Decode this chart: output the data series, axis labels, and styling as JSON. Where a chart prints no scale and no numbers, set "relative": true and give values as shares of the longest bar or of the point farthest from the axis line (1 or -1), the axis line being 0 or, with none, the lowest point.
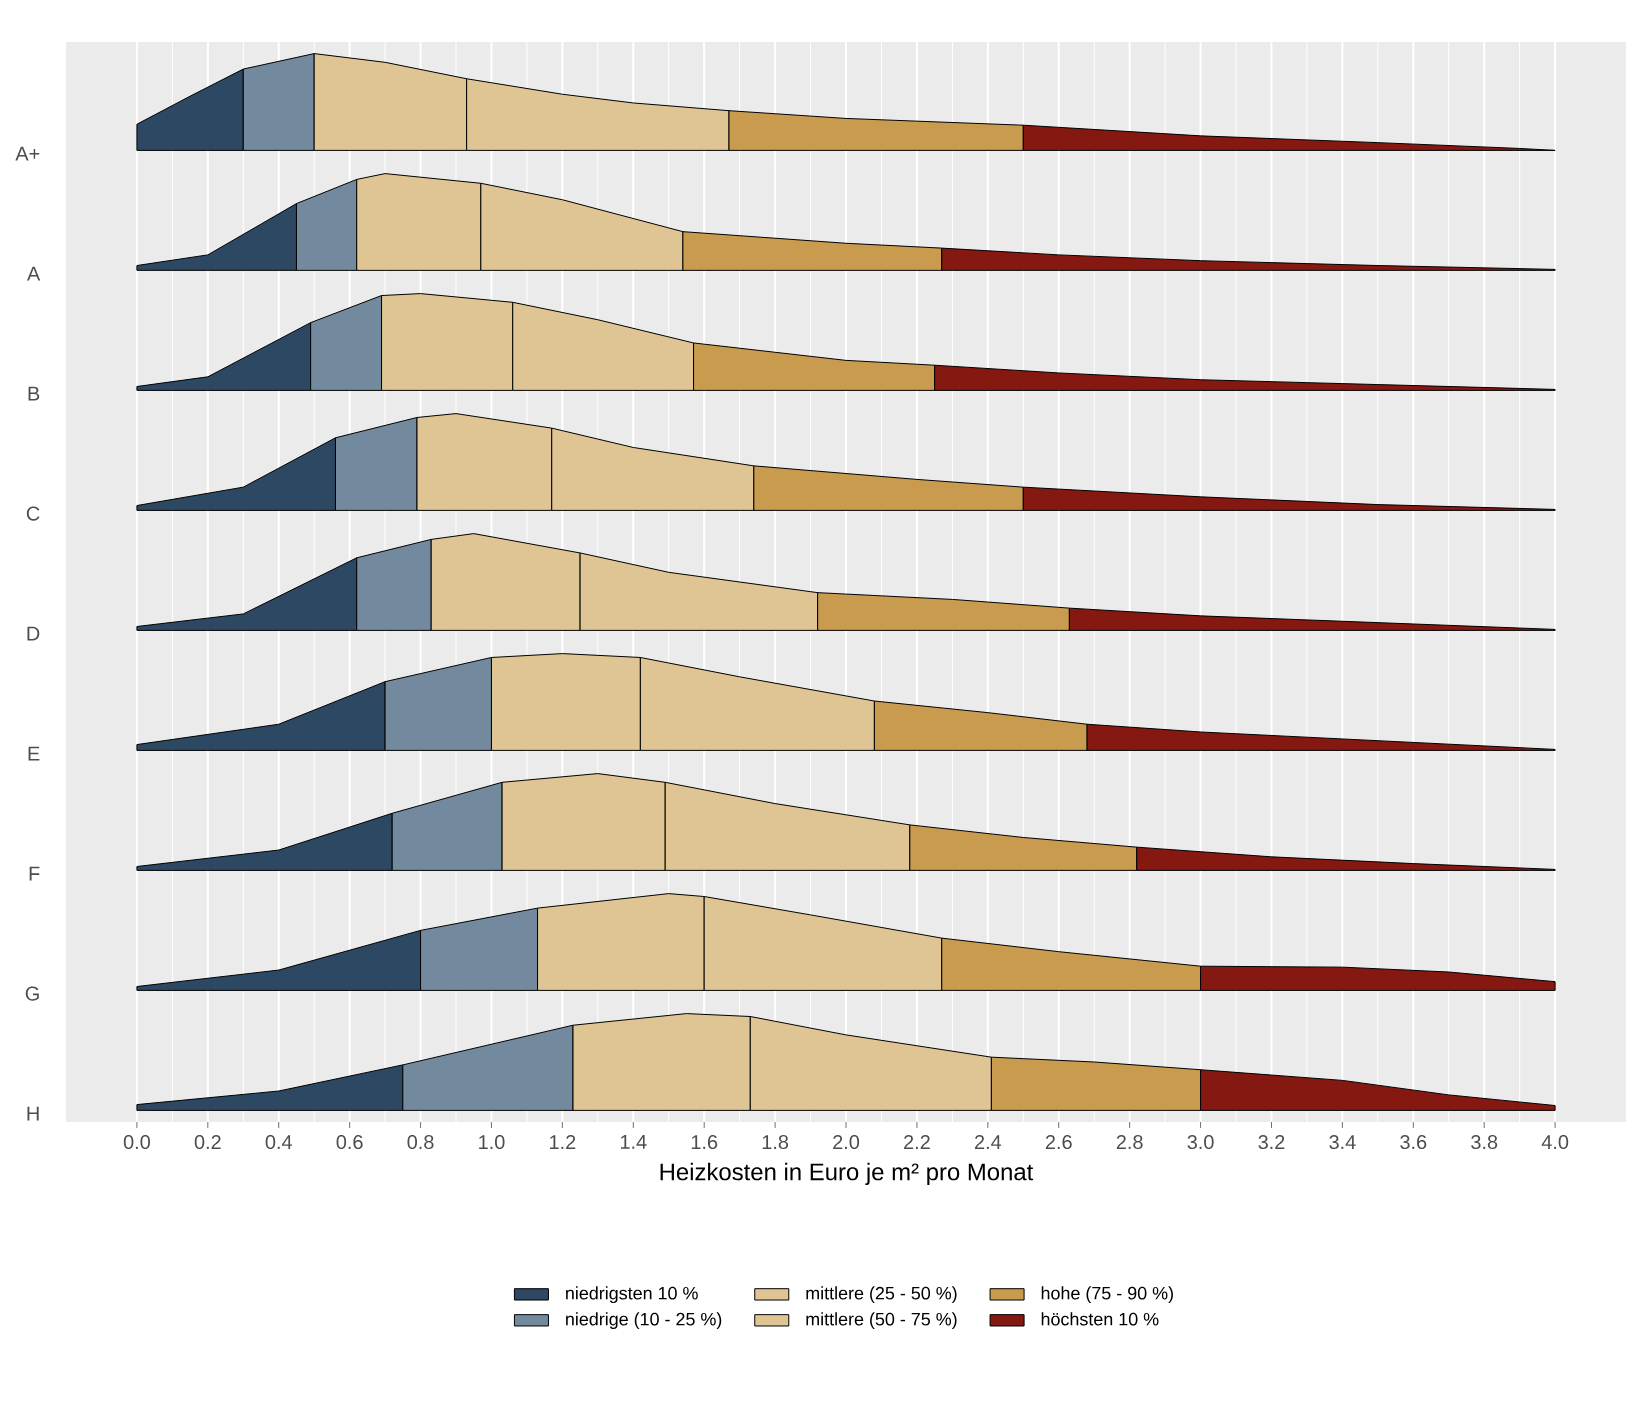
{
  "chart_data": [
    {
      "type": "area",
      "relative": true,
      "ylabel": "A+",
      "xlim": [
        -0.2,
        4.2
      ],
      "xticks": [
        0,
        0.2,
        0.4,
        0.6,
        0.8,
        1,
        1.2,
        1.4,
        1.6,
        1.8,
        2,
        2.2,
        2.4,
        2.6,
        2.8,
        3,
        3.2,
        3.4,
        3.6,
        3.8,
        4
      ],
      "tick_labels": false,
      "grid": "x",
      "series": [
        {
          "color": "#2d4862",
          "x": [
            0,
            0.15,
            0.3
          ],
          "values": [
            0.27,
            0.56,
            0.84
          ]
        },
        {
          "color": "#738a9e",
          "x": [
            0.3,
            0.5
          ],
          "values": [
            0.84,
            1
          ]
        },
        {
          "color": "#e0c594",
          "x": [
            0.5,
            0.7,
            0.93
          ],
          "values": [
            1,
            0.91,
            0.74
          ]
        },
        {
          "color": "#e0c594",
          "x": [
            0.93,
            1.2,
            1.4,
            1.67
          ],
          "values": [
            0.74,
            0.58,
            0.49,
            0.41
          ]
        },
        {
          "color": "#c99b4e",
          "x": [
            1.67,
            2.0,
            2.5
          ],
          "values": [
            0.41,
            0.33,
            0.26
          ]
        },
        {
          "color": "#861812",
          "x": [
            2.5,
            3.0,
            3.5,
            3.9,
            4.0
          ],
          "values": [
            0.26,
            0.15,
            0.08,
            0.02,
            0
          ]
        }
      ]
    },
    {
      "type": "area",
      "relative": true,
      "ylabel": "A",
      "xlim": [
        -0.2,
        4.2
      ],
      "xticks": [
        0,
        0.2,
        0.4,
        0.6,
        0.8,
        1,
        1.2,
        1.4,
        1.6,
        1.8,
        2,
        2.2,
        2.4,
        2.6,
        2.8,
        3,
        3.2,
        3.4,
        3.6,
        3.8,
        4
      ],
      "tick_labels": false,
      "grid": "x",
      "series": [
        {
          "color": "#2d4862",
          "x": [
            0,
            0.2,
            0.45
          ],
          "values": [
            0.05,
            0.16,
            0.69
          ]
        },
        {
          "color": "#738a9e",
          "x": [
            0.45,
            0.62
          ],
          "values": [
            0.69,
            0.94
          ]
        },
        {
          "color": "#e0c594",
          "x": [
            0.62,
            0.7,
            0.97
          ],
          "values": [
            0.94,
            1,
            0.9
          ]
        },
        {
          "color": "#e0c594",
          "x": [
            0.97,
            1.2,
            1.54
          ],
          "values": [
            0.9,
            0.73,
            0.4
          ]
        },
        {
          "color": "#c99b4e",
          "x": [
            1.54,
            2.0,
            2.27
          ],
          "values": [
            0.4,
            0.28,
            0.23
          ]
        },
        {
          "color": "#861812",
          "x": [
            2.27,
            2.6,
            3.0,
            3.5,
            4.0
          ],
          "values": [
            0.23,
            0.16,
            0.1,
            0.05,
            0.01
          ]
        }
      ]
    },
    {
      "type": "area",
      "relative": true,
      "ylabel": "B",
      "xlim": [
        -0.2,
        4.2
      ],
      "xticks": [
        0,
        0.2,
        0.4,
        0.6,
        0.8,
        1,
        1.2,
        1.4,
        1.6,
        1.8,
        2,
        2.2,
        2.4,
        2.6,
        2.8,
        3,
        3.2,
        3.4,
        3.6,
        3.8,
        4
      ],
      "tick_labels": false,
      "grid": "x",
      "series": [
        {
          "color": "#2d4862",
          "x": [
            0,
            0.2,
            0.49
          ],
          "values": [
            0.04,
            0.14,
            0.7
          ]
        },
        {
          "color": "#738a9e",
          "x": [
            0.49,
            0.69
          ],
          "values": [
            0.7,
            0.98
          ]
        },
        {
          "color": "#e0c594",
          "x": [
            0.69,
            0.8,
            1.06
          ],
          "values": [
            0.98,
            1,
            0.91
          ]
        },
        {
          "color": "#e0c594",
          "x": [
            1.06,
            1.3,
            1.57
          ],
          "values": [
            0.91,
            0.73,
            0.49
          ]
        },
        {
          "color": "#c99b4e",
          "x": [
            1.57,
            2.0,
            2.25
          ],
          "values": [
            0.49,
            0.31,
            0.26
          ]
        },
        {
          "color": "#861812",
          "x": [
            2.25,
            2.6,
            3.0,
            3.5,
            4.0
          ],
          "values": [
            0.26,
            0.18,
            0.11,
            0.06,
            0.01
          ]
        }
      ]
    },
    {
      "type": "area",
      "relative": true,
      "ylabel": "C",
      "xlim": [
        -0.2,
        4.2
      ],
      "xticks": [
        0,
        0.2,
        0.4,
        0.6,
        0.8,
        1,
        1.2,
        1.4,
        1.6,
        1.8,
        2,
        2.2,
        2.4,
        2.6,
        2.8,
        3,
        3.2,
        3.4,
        3.6,
        3.8,
        4
      ],
      "tick_labels": false,
      "grid": "x",
      "series": [
        {
          "color": "#2d4862",
          "x": [
            0,
            0.3,
            0.56
          ],
          "values": [
            0.05,
            0.24,
            0.75
          ]
        },
        {
          "color": "#738a9e",
          "x": [
            0.56,
            0.79
          ],
          "values": [
            0.75,
            0.96
          ]
        },
        {
          "color": "#e0c594",
          "x": [
            0.79,
            0.9,
            1.17
          ],
          "values": [
            0.96,
            1,
            0.85
          ]
        },
        {
          "color": "#e0c594",
          "x": [
            1.17,
            1.4,
            1.74
          ],
          "values": [
            0.85,
            0.65,
            0.46
          ]
        },
        {
          "color": "#c99b4e",
          "x": [
            1.74,
            2.2,
            2.5
          ],
          "values": [
            0.46,
            0.32,
            0.24
          ]
        },
        {
          "color": "#861812",
          "x": [
            2.5,
            3.0,
            3.5,
            4.0
          ],
          "values": [
            0.24,
            0.14,
            0.06,
            0.01
          ]
        }
      ]
    },
    {
      "type": "area",
      "relative": true,
      "ylabel": "D",
      "xlim": [
        -0.2,
        4.2
      ],
      "xticks": [
        0,
        0.2,
        0.4,
        0.6,
        0.8,
        1,
        1.2,
        1.4,
        1.6,
        1.8,
        2,
        2.2,
        2.4,
        2.6,
        2.8,
        3,
        3.2,
        3.4,
        3.6,
        3.8,
        4
      ],
      "tick_labels": false,
      "grid": "x",
      "series": [
        {
          "color": "#2d4862",
          "x": [
            0,
            0.3,
            0.62
          ],
          "values": [
            0.04,
            0.17,
            0.75
          ]
        },
        {
          "color": "#738a9e",
          "x": [
            0.62,
            0.83
          ],
          "values": [
            0.75,
            0.94
          ]
        },
        {
          "color": "#e0c594",
          "x": [
            0.83,
            0.95,
            1.25
          ],
          "values": [
            0.94,
            1,
            0.8
          ]
        },
        {
          "color": "#e0c594",
          "x": [
            1.25,
            1.5,
            1.92
          ],
          "values": [
            0.8,
            0.6,
            0.39
          ]
        },
        {
          "color": "#c99b4e",
          "x": [
            1.92,
            2.3,
            2.63
          ],
          "values": [
            0.39,
            0.32,
            0.23
          ]
        },
        {
          "color": "#861812",
          "x": [
            2.63,
            3.0,
            3.5,
            4.0
          ],
          "values": [
            0.23,
            0.15,
            0.08,
            0.01
          ]
        }
      ]
    },
    {
      "type": "area",
      "relative": true,
      "ylabel": "E",
      "xlim": [
        -0.2,
        4.2
      ],
      "xticks": [
        0,
        0.2,
        0.4,
        0.6,
        0.8,
        1,
        1.2,
        1.4,
        1.6,
        1.8,
        2,
        2.2,
        2.4,
        2.6,
        2.8,
        3,
        3.2,
        3.4,
        3.6,
        3.8,
        4
      ],
      "tick_labels": false,
      "grid": "x",
      "series": [
        {
          "color": "#2d4862",
          "x": [
            0,
            0.4,
            0.7
          ],
          "values": [
            0.06,
            0.27,
            0.71
          ]
        },
        {
          "color": "#738a9e",
          "x": [
            0.7,
            1.0
          ],
          "values": [
            0.71,
            0.96
          ]
        },
        {
          "color": "#e0c594",
          "x": [
            1.0,
            1.2,
            1.42
          ],
          "values": [
            0.96,
            1,
            0.96
          ]
        },
        {
          "color": "#e0c594",
          "x": [
            1.42,
            1.7,
            2.08
          ],
          "values": [
            0.96,
            0.76,
            0.51
          ]
        },
        {
          "color": "#c99b4e",
          "x": [
            2.08,
            2.4,
            2.68
          ],
          "values": [
            0.51,
            0.39,
            0.27
          ]
        },
        {
          "color": "#861812",
          "x": [
            2.68,
            3.0,
            3.5,
            4.0
          ],
          "values": [
            0.27,
            0.19,
            0.1,
            0.01
          ]
        }
      ]
    },
    {
      "type": "area",
      "relative": true,
      "ylabel": "F",
      "xlim": [
        -0.2,
        4.2
      ],
      "xticks": [
        0,
        0.2,
        0.4,
        0.6,
        0.8,
        1,
        1.2,
        1.4,
        1.6,
        1.8,
        2,
        2.2,
        2.4,
        2.6,
        2.8,
        3,
        3.2,
        3.4,
        3.6,
        3.8,
        4
      ],
      "tick_labels": false,
      "grid": "x",
      "series": [
        {
          "color": "#2d4862",
          "x": [
            0,
            0.4,
            0.72
          ],
          "values": [
            0.04,
            0.21,
            0.59
          ]
        },
        {
          "color": "#738a9e",
          "x": [
            0.72,
            1.03
          ],
          "values": [
            0.59,
            0.91
          ]
        },
        {
          "color": "#e0c594",
          "x": [
            1.03,
            1.3,
            1.49
          ],
          "values": [
            0.91,
            1,
            0.91
          ]
        },
        {
          "color": "#e0c594",
          "x": [
            1.49,
            1.8,
            2.18
          ],
          "values": [
            0.91,
            0.69,
            0.47
          ]
        },
        {
          "color": "#c99b4e",
          "x": [
            2.18,
            2.5,
            2.82
          ],
          "values": [
            0.47,
            0.34,
            0.24
          ]
        },
        {
          "color": "#861812",
          "x": [
            2.82,
            3.2,
            3.6,
            4.0
          ],
          "values": [
            0.24,
            0.14,
            0.07,
            0.01
          ]
        }
      ]
    },
    {
      "type": "area",
      "relative": true,
      "ylabel": "G",
      "xlim": [
        -0.2,
        4.2
      ],
      "xticks": [
        0,
        0.2,
        0.4,
        0.6,
        0.8,
        1,
        1.2,
        1.4,
        1.6,
        1.8,
        2,
        2.2,
        2.4,
        2.6,
        2.8,
        3,
        3.2,
        3.4,
        3.6,
        3.8,
        4
      ],
      "tick_labels": false,
      "grid": "x",
      "series": [
        {
          "color": "#2d4862",
          "x": [
            0,
            0.4,
            0.8
          ],
          "values": [
            0.04,
            0.21,
            0.62
          ]
        },
        {
          "color": "#738a9e",
          "x": [
            0.8,
            1.13
          ],
          "values": [
            0.62,
            0.85
          ]
        },
        {
          "color": "#e0c594",
          "x": [
            1.13,
            1.5,
            1.6
          ],
          "values": [
            0.85,
            1,
            0.97
          ]
        },
        {
          "color": "#e0c594",
          "x": [
            1.6,
            1.9,
            2.27
          ],
          "values": [
            0.97,
            0.78,
            0.54
          ]
        },
        {
          "color": "#c99b4e",
          "x": [
            2.27,
            2.6,
            3.0
          ],
          "values": [
            0.54,
            0.4,
            0.25
          ]
        },
        {
          "color": "#861812",
          "x": [
            3.0,
            3.4,
            3.7,
            4.0
          ],
          "values": [
            0.25,
            0.24,
            0.19,
            0.09
          ]
        }
      ]
    },
    {
      "type": "area",
      "relative": true,
      "ylabel": "H",
      "xlabel": "Heizkosten in Euro je m² pro Monat",
      "xlim": [
        -0.2,
        4.2
      ],
      "xticks": [
        {
          "value": 0,
          "label": "0.0"
        },
        0.2,
        0.4,
        0.6,
        0.8,
        {
          "value": 1,
          "label": "1.0"
        },
        1.2,
        1.4,
        1.6,
        1.8,
        {
          "value": 2,
          "label": "2.0"
        },
        2.2,
        2.4,
        2.6,
        2.8,
        {
          "value": 3,
          "label": "3.0"
        },
        3.2,
        3.4,
        3.6,
        3.8,
        {
          "value": 4,
          "label": "4.0"
        }
      ],
      "tick_labels": "x",
      "grid": "x",
      "legend": "bottom",
      "series": [
        {
          "name": "niedrigsten 10 %",
          "color": "#2d4862",
          "x": [
            0,
            0.4,
            0.75
          ],
          "values": [
            0.06,
            0.2,
            0.47
          ]
        },
        {
          "name": "niedrige (10 - 25 %)",
          "color": "#738a9e",
          "x": [
            0.75,
            1.23
          ],
          "values": [
            0.47,
            0.88
          ]
        },
        {
          "name": "mittlere (25 - 50 %)",
          "color": "#e0c594",
          "x": [
            1.23,
            1.55,
            1.73
          ],
          "values": [
            0.88,
            1,
            0.97
          ]
        },
        {
          "name": "mittlere (50 - 75 %)",
          "color": "#e0c594",
          "x": [
            1.73,
            2.0,
            2.41
          ],
          "values": [
            0.97,
            0.78,
            0.55
          ]
        },
        {
          "name": "hohe (75 - 90 %)",
          "color": "#c99b4e",
          "x": [
            2.41,
            2.7,
            3.0
          ],
          "values": [
            0.55,
            0.5,
            0.42
          ]
        },
        {
          "name": "höchsten 10 %",
          "color": "#861812",
          "x": [
            3.0,
            3.4,
            3.7,
            4.0
          ],
          "values": [
            0.42,
            0.31,
            0.16,
            0.05
          ]
        }
      ]
    }
  ]
}
